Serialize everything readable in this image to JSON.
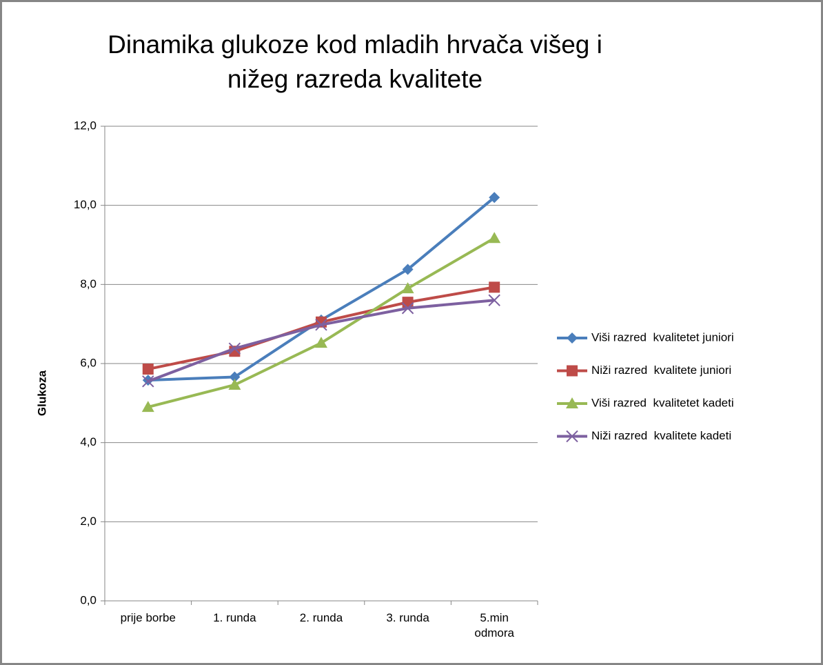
{
  "chart_data": {
    "type": "line",
    "title": "Dinamika glukoze kod mladih hrvača višeg i nižeg razreda kvalitete",
    "y_label": "Glukoza",
    "categories": [
      "prije borbe",
      "1. runda",
      "2. runda",
      "3. runda",
      "5.min odmora"
    ],
    "series": [
      {
        "name": "Viši razred  kvalitetet juniori",
        "color": "#4a7ebb",
        "marker": "diamond",
        "values": [
          5.58,
          5.66,
          7.1,
          8.38,
          10.2
        ]
      },
      {
        "name": "Niži razred  kvalitete juniori",
        "color": "#be4b48",
        "marker": "square",
        "values": [
          5.86,
          6.31,
          7.05,
          7.55,
          7.93
        ]
      },
      {
        "name": "Viši razred  kvalitetet kadeti",
        "color": "#98b954",
        "marker": "triangle",
        "values": [
          4.9,
          5.46,
          6.52,
          7.9,
          9.17
        ]
      },
      {
        "name": "Niži razred  kvalitete kadeti",
        "color": "#7d60a0",
        "marker": "x",
        "values": [
          5.55,
          6.38,
          6.98,
          7.4,
          7.6
        ]
      }
    ],
    "ylim": [
      0,
      12
    ],
    "yticks": [
      {
        "value": 0,
        "label": "0,0"
      },
      {
        "value": 2,
        "label": "2,0"
      },
      {
        "value": 4,
        "label": "4,0"
      },
      {
        "value": 6,
        "label": "6,0"
      },
      {
        "value": 8,
        "label": "8,0"
      },
      {
        "value": 10,
        "label": "10,0"
      },
      {
        "value": 12,
        "label": "12,0"
      }
    ],
    "grid": true,
    "legend": "right"
  }
}
